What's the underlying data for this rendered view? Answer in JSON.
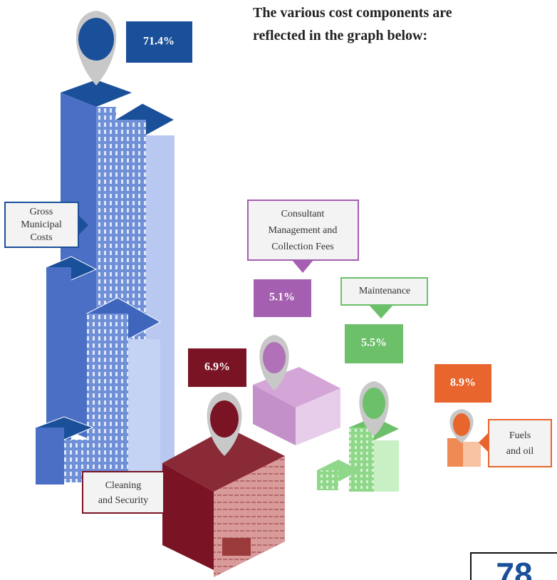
{
  "intro": [
    "The various cost components are",
    "reflected in the graph below:"
  ],
  "items": [
    {
      "label": [
        "Gross",
        "Municipal",
        "Costs"
      ],
      "value": "71.4%"
    },
    {
      "label": [
        "Consultant",
        "Management and",
        "Collection Fees"
      ],
      "value": "5.1%"
    },
    {
      "label": [
        "Maintenance"
      ],
      "value": "5.5%"
    },
    {
      "label": [
        "Cleaning",
        "and Security"
      ],
      "value": "6.9%"
    },
    {
      "label": [
        "Fuels",
        "and oil"
      ],
      "value": "8.9%"
    }
  ],
  "page_number": "78"
}
